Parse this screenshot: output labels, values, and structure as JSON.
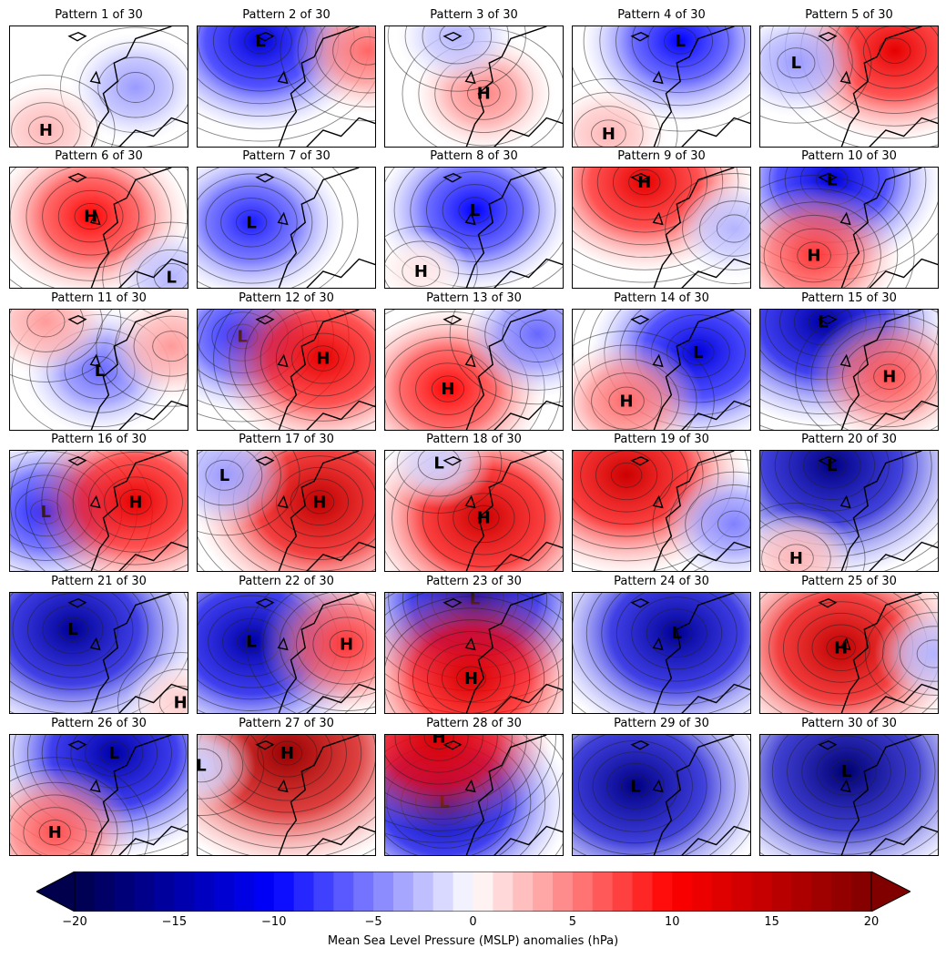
{
  "figure": {
    "panels": [
      {
        "title": "Pattern 1 of 30",
        "centers": [
          {
            "label": "",
            "anomaly": -4
          },
          {
            "label": "H",
            "anomaly": 3
          }
        ]
      },
      {
        "title": "Pattern 2 of 30",
        "centers": [
          {
            "label": "L",
            "anomaly": -12
          },
          {
            "label": "",
            "anomaly": 6
          }
        ]
      },
      {
        "title": "Pattern 3 of 30",
        "centers": [
          {
            "label": "H",
            "anomaly": 5
          },
          {
            "label": "",
            "anomaly": -3
          }
        ]
      },
      {
        "title": "Pattern 4 of 30",
        "centers": [
          {
            "label": "L",
            "anomaly": -10
          },
          {
            "label": "H",
            "anomaly": 3
          }
        ]
      },
      {
        "title": "Pattern 5 of 30",
        "centers": [
          {
            "label": "",
            "anomaly": 12
          },
          {
            "label": "L",
            "anomaly": -4
          }
        ]
      },
      {
        "title": "Pattern 6 of 30",
        "centers": [
          {
            "label": "H",
            "anomaly": 10
          },
          {
            "label": "L",
            "anomaly": -3
          }
        ]
      },
      {
        "title": "Pattern 7 of 30",
        "centers": [
          {
            "label": "L",
            "anomaly": -9
          }
        ]
      },
      {
        "title": "Pattern 8 of 30",
        "centers": [
          {
            "label": "L",
            "anomaly": -10
          },
          {
            "label": "H",
            "anomaly": 1
          }
        ]
      },
      {
        "title": "Pattern 9 of 30",
        "centers": [
          {
            "label": "H",
            "anomaly": 12
          },
          {
            "label": "",
            "anomaly": -3
          }
        ]
      },
      {
        "title": "Pattern 10 of 30",
        "centers": [
          {
            "label": "L",
            "anomaly": -12
          },
          {
            "label": "H",
            "anomaly": 8
          }
        ]
      },
      {
        "title": "Pattern 11 of 30",
        "centers": [
          {
            "label": "L",
            "anomaly": -6
          },
          {
            "label": "",
            "anomaly": 4
          },
          {
            "label": "",
            "anomaly": 4
          }
        ]
      },
      {
        "title": "Pattern 12 of 30",
        "centers": [
          {
            "label": "L",
            "anomaly": -9
          },
          {
            "label": "H",
            "anomaly": 12
          }
        ]
      },
      {
        "title": "Pattern 13 of 30",
        "centers": [
          {
            "label": "H",
            "anomaly": 10
          },
          {
            "label": "",
            "anomaly": -6
          }
        ]
      },
      {
        "title": "Pattern 14 of 30",
        "centers": [
          {
            "label": "L",
            "anomaly": -12
          },
          {
            "label": "H",
            "anomaly": 6
          }
        ]
      },
      {
        "title": "Pattern 15 of 30",
        "centers": [
          {
            "label": "L",
            "anomaly": -15
          },
          {
            "label": "H",
            "anomaly": 7
          }
        ]
      },
      {
        "title": "Pattern 16 of 30",
        "centers": [
          {
            "label": "L",
            "anomaly": -9
          },
          {
            "label": "H",
            "anomaly": 12
          }
        ]
      },
      {
        "title": "Pattern 17 of 30",
        "centers": [
          {
            "label": "H",
            "anomaly": 15
          },
          {
            "label": "L",
            "anomaly": -4
          }
        ]
      },
      {
        "title": "Pattern 18 of 30",
        "centers": [
          {
            "label": "H",
            "anomaly": 14
          },
          {
            "label": "L",
            "anomaly": -2
          }
        ]
      },
      {
        "title": "Pattern 19 of 30",
        "centers": [
          {
            "label": "",
            "anomaly": 14
          },
          {
            "label": "",
            "anomaly": -5
          }
        ]
      },
      {
        "title": "Pattern 20 of 30",
        "centers": [
          {
            "label": "L",
            "anomaly": -17
          },
          {
            "label": "H",
            "anomaly": 3
          }
        ]
      },
      {
        "title": "Pattern 21 of 30",
        "centers": [
          {
            "label": "L",
            "anomaly": -16
          },
          {
            "label": "H",
            "anomaly": 2
          }
        ]
      },
      {
        "title": "Pattern 22 of 30",
        "centers": [
          {
            "label": "L",
            "anomaly": -15
          },
          {
            "label": "H",
            "anomaly": 8
          }
        ]
      },
      {
        "title": "Pattern 23 of 30",
        "centers": [
          {
            "label": "L",
            "anomaly": -15
          },
          {
            "label": "H",
            "anomaly": 13
          }
        ]
      },
      {
        "title": "Pattern 24 of 30",
        "centers": [
          {
            "label": "L",
            "anomaly": -16
          }
        ]
      },
      {
        "title": "Pattern 25 of 30",
        "centers": [
          {
            "label": "H",
            "anomaly": 15
          },
          {
            "label": "",
            "anomaly": -3
          }
        ]
      },
      {
        "title": "Pattern 26 of 30",
        "centers": [
          {
            "label": "L",
            "anomaly": -15
          },
          {
            "label": "H",
            "anomaly": 7
          }
        ]
      },
      {
        "title": "Pattern 27 of 30",
        "centers": [
          {
            "label": "H",
            "anomaly": 18
          },
          {
            "label": "L",
            "anomaly": -2
          }
        ]
      },
      {
        "title": "Pattern 28 of 30",
        "centers": [
          {
            "label": "L",
            "anomaly": -15
          },
          {
            "label": "H",
            "anomaly": 13
          }
        ]
      },
      {
        "title": "Pattern 29 of 30",
        "centers": [
          {
            "label": "L",
            "anomaly": -17
          }
        ]
      },
      {
        "title": "Pattern 30 of 30",
        "centers": [
          {
            "label": "L",
            "anomaly": -18
          }
        ]
      }
    ]
  },
  "colorbar": {
    "colormap": "seismic",
    "range": [
      -20,
      20
    ],
    "step": 1,
    "extend": "both",
    "ticks": [
      "−20",
      "−15",
      "−10",
      "−5",
      "0",
      "5",
      "10",
      "15",
      "20"
    ],
    "label": "Mean Sea Level Pressure (MSLP) anomalies (hPa)"
  }
}
